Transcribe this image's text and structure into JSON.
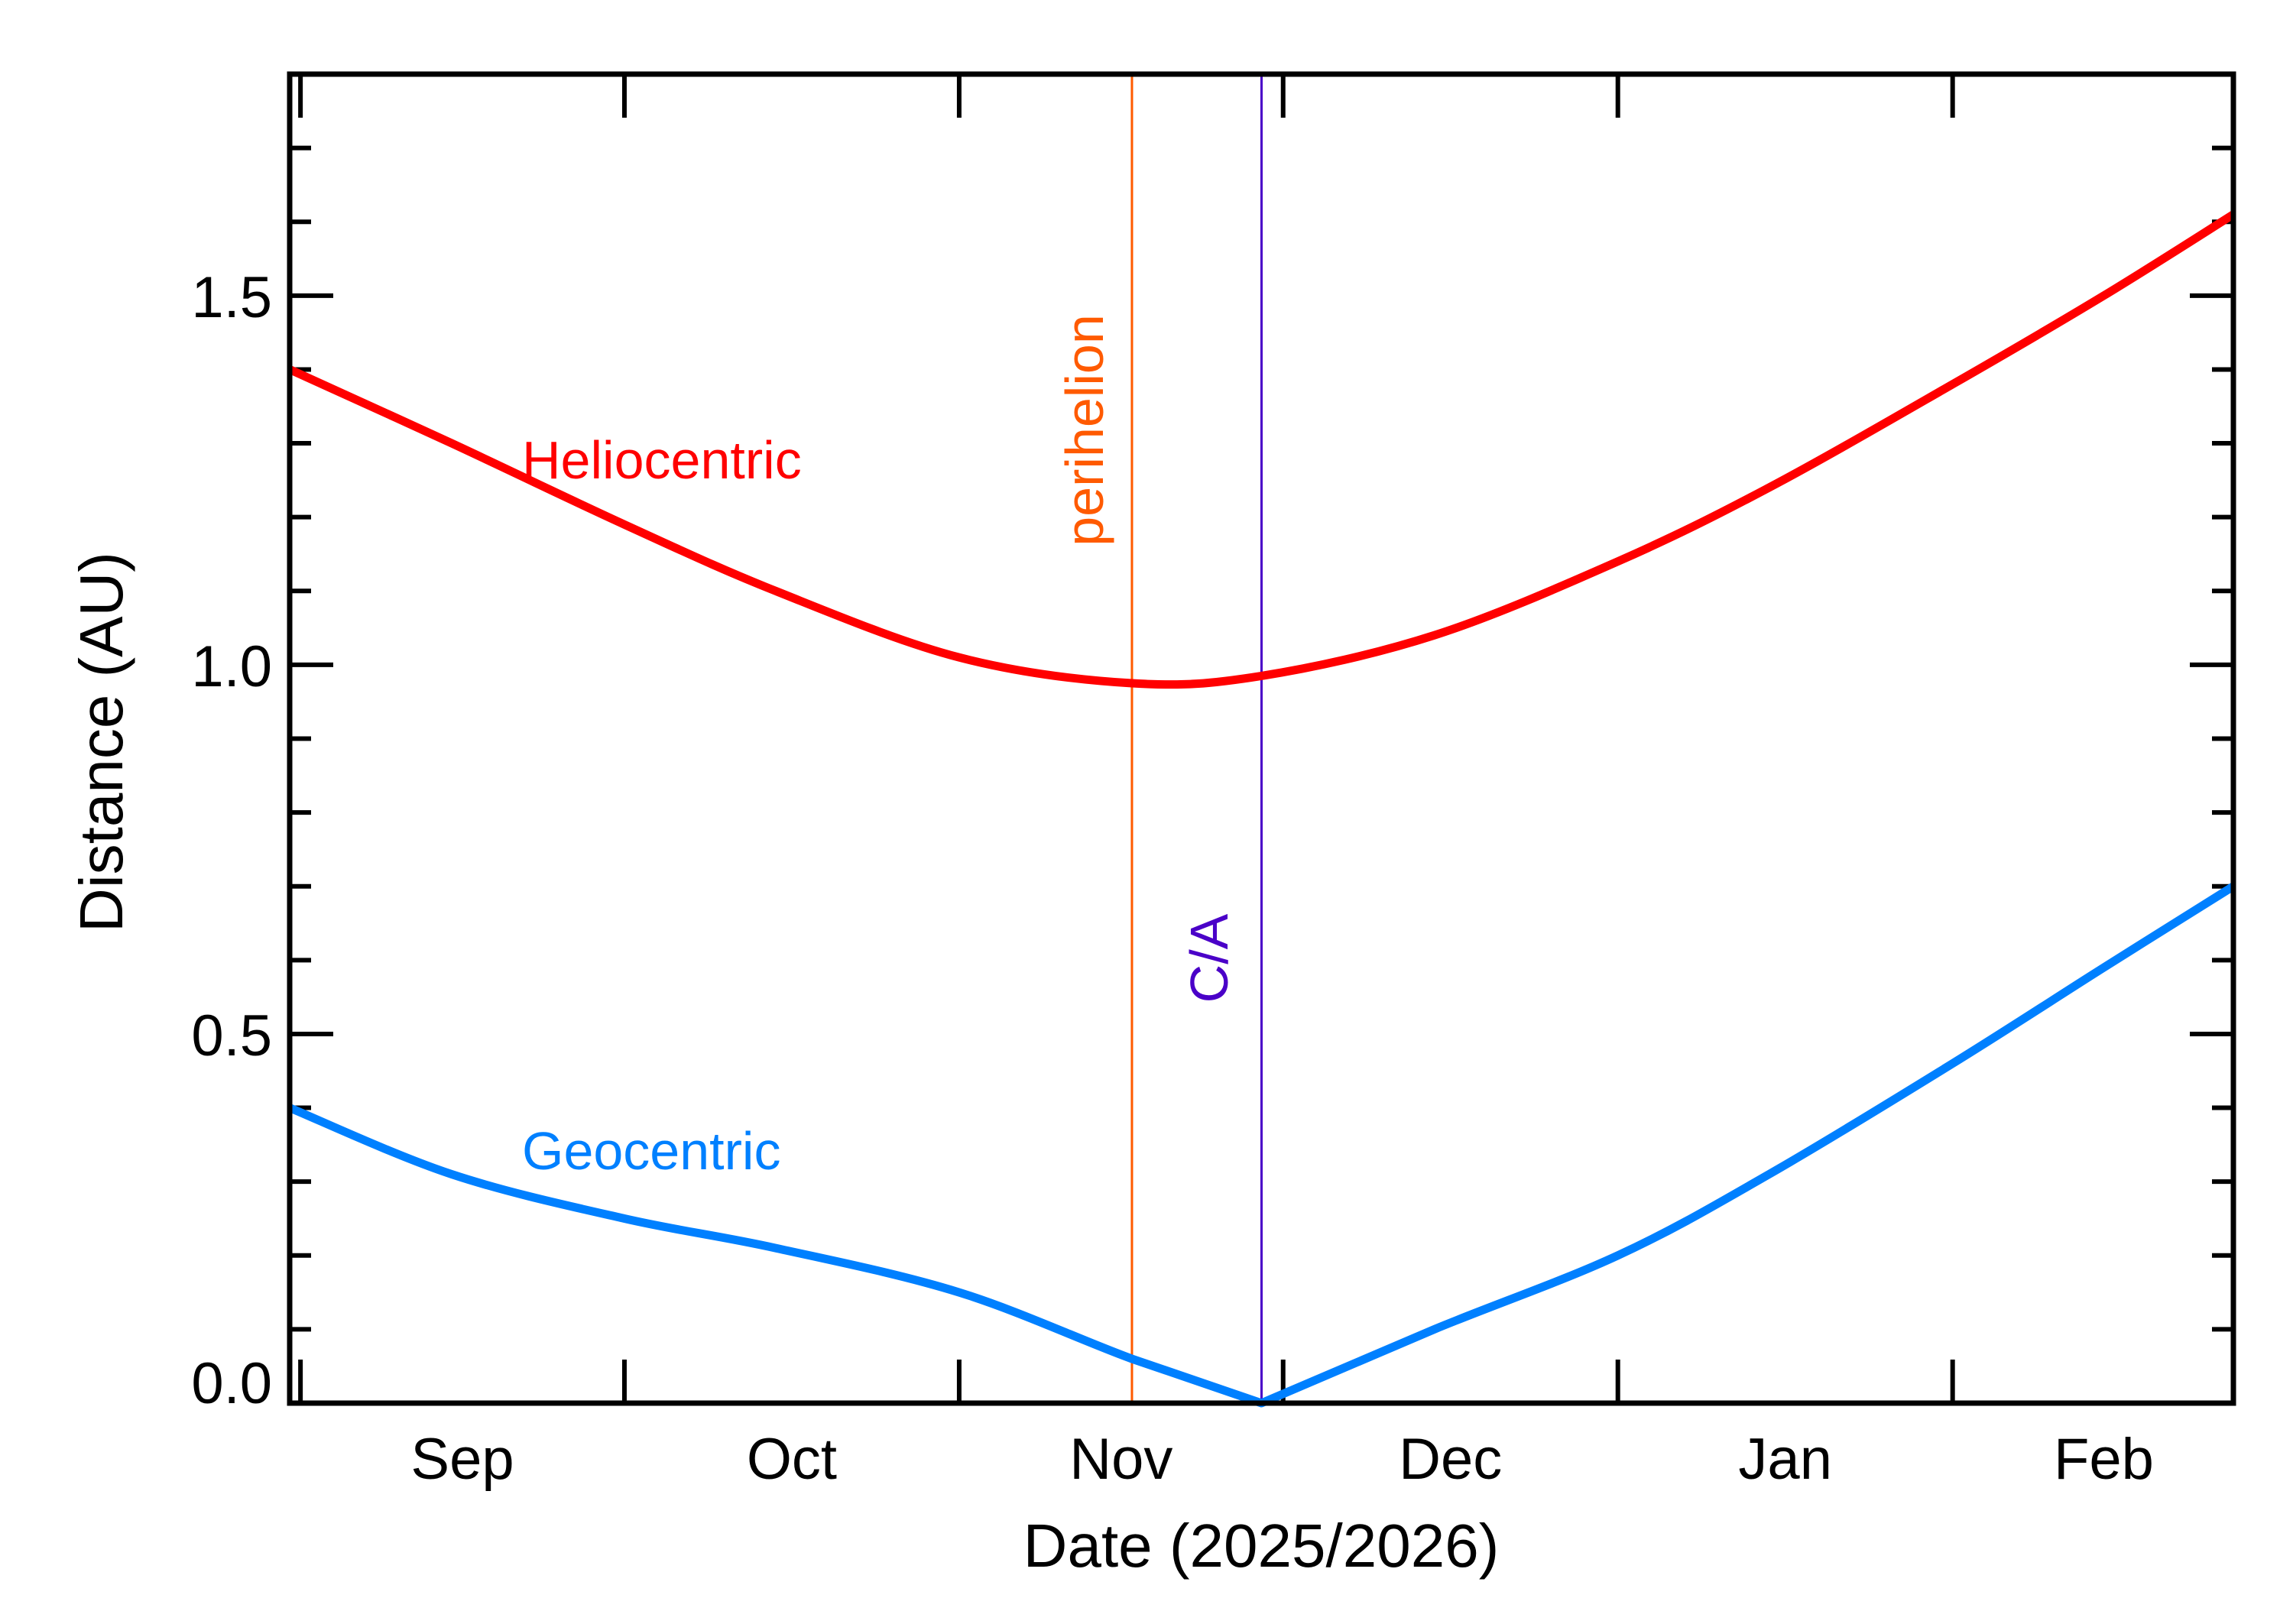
{
  "chart_data": {
    "type": "line",
    "title": "",
    "xlabel": "Date (2025/2026)",
    "ylabel": "Distance (AU)",
    "xlim": [
      "2025-08-31",
      "2026-02-27"
    ],
    "ylim": [
      0,
      1.8
    ],
    "x_tick_labels": [
      "Sep",
      "Oct",
      "Nov",
      "Dec",
      "Jan",
      "Feb"
    ],
    "x_tick_dates": [
      "2025-09-01",
      "2025-10-01",
      "2025-11-01",
      "2025-12-01",
      "2026-01-01",
      "2026-02-01"
    ],
    "y_ticks": [
      0.0,
      0.5,
      1.0,
      1.5
    ],
    "y_tick_labels": [
      "0.0",
      "0.5",
      "1.0",
      "1.5"
    ],
    "y_minor_step": 0.1,
    "grid": false,
    "series": [
      {
        "name": "Heliocentric",
        "color": "#ff0000",
        "x": [
          "2025-08-31",
          "2025-09-15",
          "2025-10-01",
          "2025-10-15",
          "2025-11-01",
          "2025-11-17",
          "2025-11-29",
          "2025-12-15",
          "2026-01-01",
          "2026-01-15",
          "2026-02-01",
          "2026-02-15",
          "2026-02-27"
        ],
        "y": [
          1.4,
          1.3,
          1.19,
          1.1,
          1.01,
          0.975,
          0.985,
          1.04,
          1.14,
          1.24,
          1.38,
          1.5,
          1.61
        ]
      },
      {
        "name": "Geocentric",
        "color": "#0080ff",
        "x": [
          "2025-08-31",
          "2025-09-15",
          "2025-10-01",
          "2025-10-15",
          "2025-11-01",
          "2025-11-17",
          "2025-11-29",
          "2025-12-15",
          "2026-01-01",
          "2026-01-15",
          "2026-02-01",
          "2026-02-15",
          "2026-02-27"
        ],
        "y": [
          0.4,
          0.31,
          0.25,
          0.21,
          0.15,
          0.06,
          0.0,
          0.1,
          0.2,
          0.31,
          0.46,
          0.59,
          0.7
        ]
      }
    ],
    "annotations": [
      {
        "label": "perihelion",
        "date": "2025-11-17",
        "color": "#ff5a00"
      },
      {
        "label": "C/A",
        "date": "2025-11-29",
        "color": "#4a00c8"
      }
    ]
  }
}
